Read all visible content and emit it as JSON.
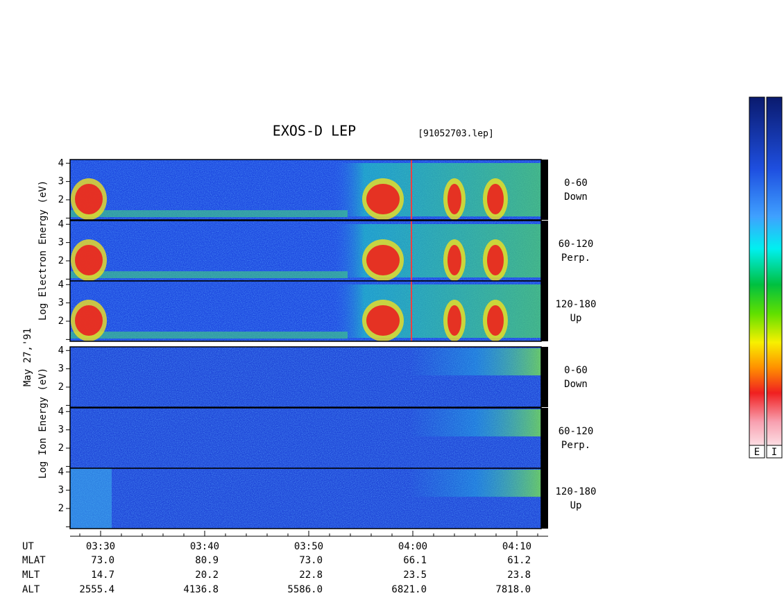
{
  "chart_data": {
    "type": "spectrogram",
    "title": "EXOS-D LEP",
    "subtitle": "[91052703.lep]",
    "date_label": "May 27,'91",
    "electron_axis_label": "Log  Electron  Energy (eV)",
    "ion_axis_label": "Log  Ion  Energy (eV)",
    "ylim": [
      0.9,
      4.2
    ],
    "yticks": [
      2,
      3,
      4
    ],
    "unlabeled_yticks": [
      1
    ],
    "time_ticks": [
      "03:30",
      "03:40",
      "03:50",
      "04:00",
      "04:10"
    ],
    "panels": [
      {
        "angle": "0-60",
        "direction": "Down"
      },
      {
        "angle": "60-120",
        "direction": "Perp."
      },
      {
        "angle": "120-180",
        "direction": "Up"
      },
      {
        "angle": "0-60",
        "direction": "Down"
      },
      {
        "angle": "60-120",
        "direction": "Perp."
      },
      {
        "angle": "120-180",
        "direction": "Up"
      }
    ],
    "ephemeris": [
      {
        "label": "MLAT",
        "values": [
          "73.0",
          "80.9",
          "73.0",
          "66.1",
          "61.2"
        ]
      },
      {
        "label": "MLT",
        "values": [
          "14.7",
          "20.2",
          "22.8",
          "23.5",
          "23.8"
        ]
      },
      {
        "label": "ALT",
        "values": [
          "2555.4",
          "4136.8",
          "5586.0",
          "6821.0",
          "7818.0"
        ]
      }
    ],
    "time_row_label": "UT",
    "colorbar_labels": [
      "E",
      "I"
    ]
  }
}
